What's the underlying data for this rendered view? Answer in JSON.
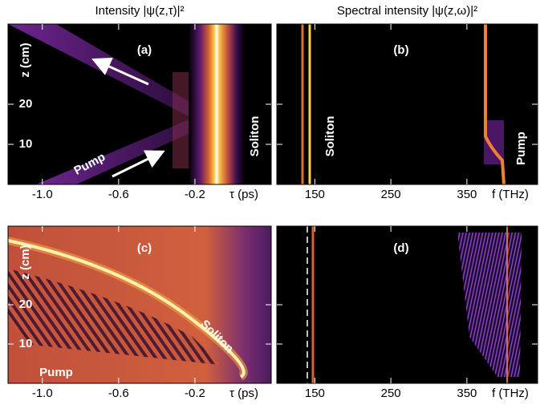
{
  "chart_data": [
    {
      "type": "density",
      "title": "Intensity |ψ(z,τ)|²",
      "panel_label": "(a)",
      "xlim": [
        -1.18,
        0.2
      ],
      "xticks": [
        {
          "value": -1,
          "label": "-1.0"
        },
        -0.6,
        -0.2
      ],
      "xlabel": "τ (ps)",
      "ylim": [
        0,
        40
      ],
      "yticks": [
        10,
        20
      ],
      "ylabel": "z (cm)",
      "annotations": [
        "Pump",
        "Soliton"
      ]
    },
    {
      "type": "density",
      "title": "Spectral intensity |ψ(z,ω)|²",
      "panel_label": "(b)",
      "xlim": [
        100,
        443
      ],
      "xticks": [
        150,
        250,
        350
      ],
      "xlabel": "f (THz)",
      "ylim": [
        0,
        40
      ],
      "yticks": [
        10,
        20
      ],
      "annotations": [
        "Soliton",
        "Pump"
      ]
    },
    {
      "type": "density",
      "panel_label": "(c)",
      "xlim": [
        -1.18,
        0.2
      ],
      "xticks": [
        {
          "value": -1,
          "label": "-1.0"
        },
        -0.6,
        -0.2
      ],
      "xlabel": "τ (ps)",
      "ylim": [
        0,
        40
      ],
      "yticks": [
        10,
        20
      ],
      "ylabel": "z (cm)",
      "annotations": [
        "Soliton",
        "Pump"
      ]
    },
    {
      "type": "density",
      "panel_label": "(d)",
      "xlim": [
        100,
        443
      ],
      "xticks": [
        150,
        250,
        350
      ],
      "xlabel": "f (THz)",
      "ylim": [
        0,
        40
      ],
      "yticks": [
        10,
        20
      ]
    }
  ]
}
